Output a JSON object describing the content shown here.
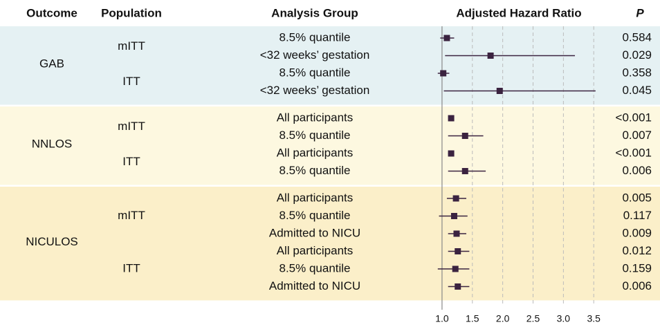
{
  "chart_data": {
    "type": "forest",
    "columns": [
      "Outcome",
      "Population",
      "Analysis Group",
      "Adjusted Hazard Ratio",
      "P"
    ],
    "color": "#3b2340",
    "band_colors": [
      "#e5f1f3",
      "#fdf8e0",
      "#fbefc9"
    ],
    "xlim": [
      0.75,
      3.6
    ],
    "xticks": [
      {
        "value": 1,
        "label": "1.0"
      },
      1.5,
      {
        "value": 2,
        "label": "2.0"
      },
      2.5,
      {
        "value": 3,
        "label": "3.0"
      },
      3.5
    ],
    "reference_line": 1,
    "grid": true,
    "outcomes": [
      {
        "name": "GAB",
        "populations": [
          {
            "name": "mITT",
            "rows": [
              {
                "group": "8.5% quantile",
                "hr": 1.08,
                "ci_low": 0.97,
                "ci_high": 1.2,
                "p": "0.584"
              },
              {
                "group": "<32 weeks’ gestation",
                "hr": 1.8,
                "ci_low": 1.05,
                "ci_high": 3.19,
                "p": "0.029"
              }
            ]
          },
          {
            "name": "ITT",
            "rows": [
              {
                "group": "8.5% quantile",
                "hr": 1.02,
                "ci_low": 0.93,
                "ci_high": 1.12,
                "p": "0.358"
              },
              {
                "group": "<32 weeks’ gestation",
                "hr": 1.95,
                "ci_low": 1.03,
                "ci_high": 3.53,
                "p": "0.045"
              }
            ]
          }
        ]
      },
      {
        "name": "NNLOS",
        "populations": [
          {
            "name": "mITT",
            "rows": [
              {
                "group": "All participants",
                "hr": 1.15,
                "ci_low": 1.11,
                "ci_high": 1.2,
                "p": "<0.001"
              },
              {
                "group": "8.5% quantile",
                "hr": 1.38,
                "ci_low": 1.1,
                "ci_high": 1.68,
                "p": "0.007"
              }
            ]
          },
          {
            "name": "ITT",
            "rows": [
              {
                "group": "All participants",
                "hr": 1.15,
                "ci_low": 1.1,
                "ci_high": 1.2,
                "p": "<0.001"
              },
              {
                "group": "8.5% quantile",
                "hr": 1.38,
                "ci_low": 1.1,
                "ci_high": 1.72,
                "p": "0.006"
              }
            ]
          }
        ]
      },
      {
        "name": "NICULOS",
        "populations": [
          {
            "name": "mITT",
            "rows": [
              {
                "group": "All participants",
                "hr": 1.23,
                "ci_low": 1.08,
                "ci_high": 1.4,
                "p": "0.005"
              },
              {
                "group": "8.5% quantile",
                "hr": 1.2,
                "ci_low": 0.95,
                "ci_high": 1.42,
                "p": "0.117"
              },
              {
                "group": "Admitted to NICU",
                "hr": 1.24,
                "ci_low": 1.1,
                "ci_high": 1.4,
                "p": "0.009"
              }
            ]
          },
          {
            "name": "ITT",
            "rows": [
              {
                "group": "All participants",
                "hr": 1.26,
                "ci_low": 1.1,
                "ci_high": 1.45,
                "p": "0.012"
              },
              {
                "group": "8.5% quantile",
                "hr": 1.22,
                "ci_low": 0.93,
                "ci_high": 1.45,
                "p": "0.159"
              },
              {
                "group": "Admitted to NICU",
                "hr": 1.26,
                "ci_low": 1.1,
                "ci_high": 1.45,
                "p": "0.006"
              }
            ]
          }
        ]
      }
    ]
  }
}
